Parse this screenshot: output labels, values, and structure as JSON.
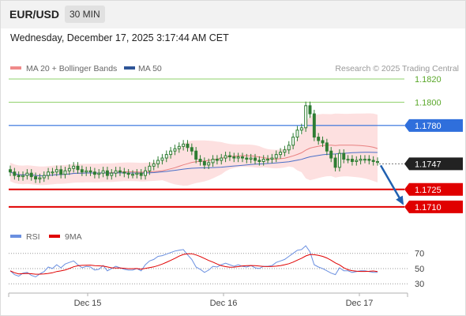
{
  "header": {
    "symbol": "EUR/USD",
    "timeframe": "30 MIN",
    "datetime": "Wednesday, December 17, 2025 3:17:44 AM CET"
  },
  "legend": {
    "ma20_label": "MA 20 + Bollinger Bands",
    "ma50_label": "MA 50",
    "credit": "Research © 2025 Trading Central"
  },
  "colors": {
    "candle": "#2e7d32",
    "bollinger_fill": "#fde0e0",
    "ma20": "#e88080",
    "ma50": "#4a6fc8",
    "resistance": "#8fd16a",
    "pivot": "#2f6fdc",
    "support": "#e00000",
    "arrow": "#2060b0",
    "rsi": "#6a8fe0",
    "rsi_ma": "#e00000"
  },
  "chart_data": [
    {
      "type": "line",
      "title": "",
      "instrument": "EUR/USD",
      "timeframe": "30 MIN",
      "x_tick_labels": [
        "Dec 15",
        "Dec 16",
        "Dec 17"
      ],
      "ylim": [
        1.1697,
        1.1822
      ],
      "series": [
        {
          "name": "EUR/USD",
          "style": "candlestick",
          "approx_close": [
            1.174,
            1.1737,
            1.1736,
            1.1737,
            1.1739,
            1.1736,
            1.1734,
            1.1735,
            1.1737,
            1.174,
            1.174,
            1.1742,
            1.1738,
            1.1741,
            1.1743,
            1.1745,
            1.1742,
            1.174,
            1.1741,
            1.174,
            1.1738,
            1.1739,
            1.1741,
            1.1737,
            1.1739,
            1.1741,
            1.174,
            1.1739,
            1.1738,
            1.1738,
            1.1739,
            1.1737,
            1.1741,
            1.1745,
            1.1747,
            1.175,
            1.1752,
            1.1755,
            1.1758,
            1.176,
            1.1762,
            1.1764,
            1.1761,
            1.1758,
            1.1751,
            1.1749,
            1.1746,
            1.1748,
            1.1751,
            1.175,
            1.1752,
            1.1754,
            1.1753,
            1.1752,
            1.1753,
            1.1752,
            1.1751,
            1.1752,
            1.175,
            1.1749,
            1.1751,
            1.1751,
            1.1752,
            1.1755,
            1.1757,
            1.1759,
            1.1763,
            1.177,
            1.1776,
            1.1778,
            1.1797,
            1.179,
            1.177,
            1.1767,
            1.1765,
            1.1758,
            1.1752,
            1.1744,
            1.1756,
            1.1751,
            1.1751,
            1.1749,
            1.175,
            1.1751,
            1.1751,
            1.175,
            1.1749,
            1.1749
          ]
        },
        {
          "name": "MA 20 + Bollinger Bands"
        },
        {
          "name": "MA 50"
        }
      ],
      "levels": [
        {
          "label": "1.1820",
          "value": 1.182,
          "kind": "resistance"
        },
        {
          "label": "1.1800",
          "value": 1.18,
          "kind": "resistance"
        },
        {
          "label": "1.1780",
          "value": 1.178,
          "kind": "pivot"
        },
        {
          "label": "1.1747",
          "value": 1.1747,
          "kind": "last"
        },
        {
          "label": "1.1725",
          "value": 1.1725,
          "kind": "support"
        },
        {
          "label": "1.1710",
          "value": 1.171,
          "kind": "support"
        }
      ],
      "forecast_arrow": {
        "from": 1.1747,
        "to": 1.171,
        "direction": "down"
      }
    },
    {
      "type": "line",
      "title": "",
      "ylim": [
        25,
        78
      ],
      "y_tick_labels": [
        "70",
        "50",
        "30"
      ],
      "series": [
        {
          "name": "RSI",
          "approx_values": [
            47,
            42,
            40,
            44,
            45,
            41,
            39,
            43,
            46,
            52,
            50,
            55,
            51,
            56,
            58,
            60,
            55,
            51,
            53,
            52,
            48,
            49,
            54,
            47,
            50,
            53,
            51,
            49,
            48,
            48,
            50,
            47,
            55,
            60,
            62,
            66,
            67,
            69,
            71,
            73,
            74,
            75,
            68,
            62,
            52,
            49,
            45,
            48,
            53,
            52,
            55,
            57,
            55,
            53,
            55,
            53,
            52,
            54,
            51,
            50,
            53,
            53,
            54,
            58,
            60,
            62,
            66,
            70,
            74,
            75,
            80,
            72,
            55,
            52,
            50,
            47,
            44,
            42,
            51,
            47,
            47,
            45,
            46,
            47,
            47,
            46,
            45,
            45
          ]
        },
        {
          "name": "9MA"
        }
      ]
    }
  ]
}
